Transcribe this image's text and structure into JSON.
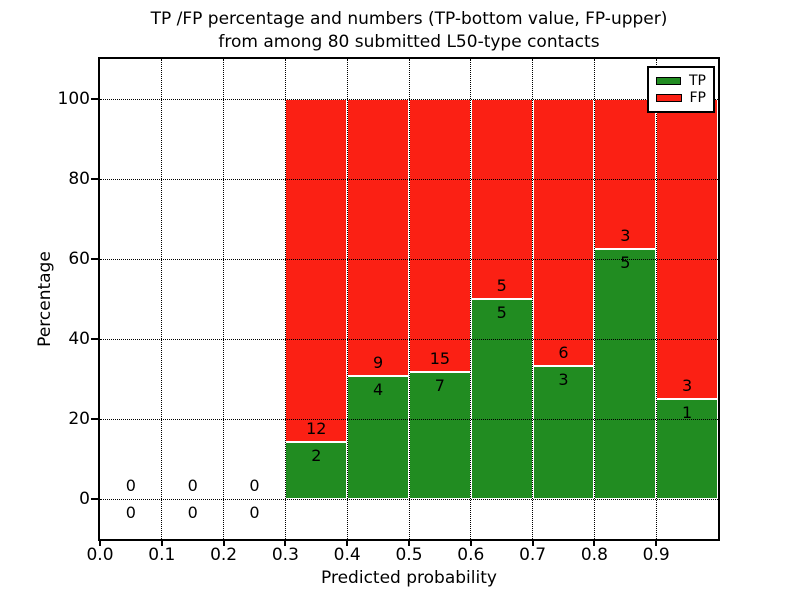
{
  "title": {
    "line1": "TP /FP percentage and numbers (TP-bottom value, FP-upper)",
    "line2": "from among 80 submitted L50-type contacts"
  },
  "colors": {
    "tp_green": "#218C21",
    "fp_red": "#FB2014",
    "grid": "#000000",
    "background": "#FFFFFF"
  },
  "legend": {
    "position": "upper-right",
    "items": [
      {
        "label": "TP"
      },
      {
        "label": "FP"
      }
    ]
  },
  "chart_data": {
    "type": "bar",
    "stacked": true,
    "title": "TP /FP percentage and numbers (TP-bottom value, FP-upper) from among 80 submitted L50-type contacts",
    "xlabel": "Predicted probability",
    "ylabel": "Percentage",
    "xlim": [
      0,
      1.0
    ],
    "ylim": [
      -10,
      110
    ],
    "grid": "dotted",
    "legend_position": "upper right",
    "total_contacts": 80,
    "bin_edges": [
      0.0,
      0.1,
      0.2,
      0.3,
      0.4,
      0.5,
      0.6,
      0.7,
      0.8,
      0.9,
      1.0
    ],
    "xtick_labels": [
      "0.0",
      "0.1",
      "0.2",
      "0.3",
      "0.4",
      "0.5",
      "0.6",
      "0.7",
      "0.8",
      "0.9"
    ],
    "ytick_values": [
      0,
      20,
      40,
      60,
      80,
      100
    ],
    "series": [
      {
        "name": "TP",
        "color": "#218C21",
        "counts": [
          0,
          0,
          0,
          2,
          4,
          7,
          5,
          3,
          5,
          1
        ]
      },
      {
        "name": "FP",
        "color": "#FB2014",
        "counts": [
          0,
          0,
          0,
          12,
          9,
          15,
          5,
          6,
          3,
          3
        ]
      }
    ],
    "tp_percent_of_bin": [
      0,
      0,
      0,
      14.29,
      30.77,
      31.82,
      50.0,
      33.33,
      62.5,
      25.0
    ]
  }
}
